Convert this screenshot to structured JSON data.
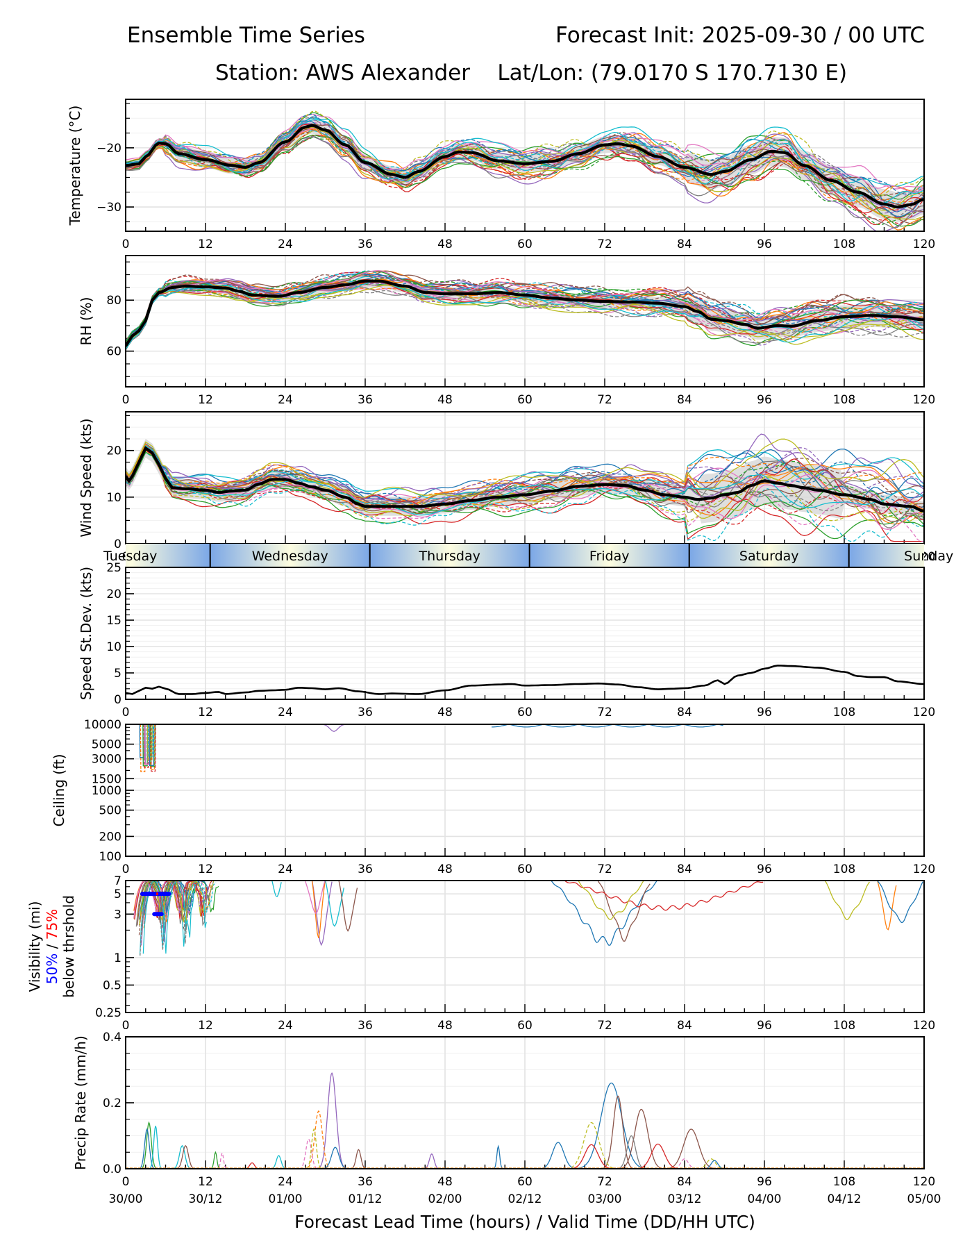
{
  "header": {
    "title": "Ensemble Time Series",
    "init": "Forecast Init: 2025-09-30 / 00 UTC",
    "station": "Station: AWS Alexander    Lat/Lon: (79.0170 S 170.7130 E)"
  },
  "chart_data": {
    "type": "line",
    "title": "Ensemble Time Series",
    "x": {
      "label": "Forecast Lead Time (hours) / Valid Time (DD/HH UTC)",
      "range": [
        0,
        120
      ],
      "ticks": [
        0,
        12,
        24,
        36,
        48,
        60,
        72,
        84,
        96,
        108,
        120
      ],
      "valid_time_labels": [
        "30/00",
        "30/12",
        "01/00",
        "01/12",
        "02/00",
        "02/12",
        "03/00",
        "03/12",
        "04/00",
        "04/12",
        "05/00"
      ]
    },
    "day_bar": {
      "days": [
        {
          "label": "Tuesday",
          "start": 0,
          "end": 12.7
        },
        {
          "label": "Wednesday",
          "start": 12.7,
          "end": 36.7
        },
        {
          "label": "Thursday",
          "start": 36.7,
          "end": 60.7
        },
        {
          "label": "Friday",
          "start": 60.7,
          "end": 84.7
        },
        {
          "label": "Saturday",
          "start": 84.7,
          "end": 108.7
        },
        {
          "label": "Sunday",
          "start": 108.7,
          "end": 132.7
        }
      ],
      "night_color": "#7ba7e6",
      "day_color": "#fdfde0"
    },
    "panels": [
      {
        "name": "temperature",
        "ylabel": "Temperature (°C)",
        "scale": "linear",
        "ylim": [
          -34.1,
          -11.8
        ],
        "yticks": [
          -20,
          -30
        ],
        "ytick_labels": [
          "−20",
          "−30"
        ],
        "mean": [
          [
            0,
            -23
          ],
          [
            2,
            -22.7
          ],
          [
            3,
            -21.5
          ],
          [
            5,
            -19.2
          ],
          [
            6,
            -19.3
          ],
          [
            8,
            -21
          ],
          [
            12,
            -22
          ],
          [
            16,
            -23
          ],
          [
            18,
            -23.3
          ],
          [
            20,
            -22.5
          ],
          [
            24,
            -19
          ],
          [
            27,
            -16.5
          ],
          [
            28,
            -16.2
          ],
          [
            30,
            -17
          ],
          [
            33,
            -19.5
          ],
          [
            36,
            -22.5
          ],
          [
            40,
            -24.5
          ],
          [
            42,
            -25
          ],
          [
            44,
            -24
          ],
          [
            48,
            -21.5
          ],
          [
            50,
            -20.7
          ],
          [
            52,
            -20.8
          ],
          [
            56,
            -22.2
          ],
          [
            60,
            -22.7
          ],
          [
            64,
            -22.3
          ],
          [
            68,
            -21
          ],
          [
            72,
            -19.5
          ],
          [
            74,
            -19.3
          ],
          [
            76,
            -19.7
          ],
          [
            80,
            -21.5
          ],
          [
            84,
            -23.3
          ],
          [
            88,
            -24.5
          ],
          [
            90,
            -24
          ],
          [
            94,
            -22
          ],
          [
            97,
            -20.6
          ],
          [
            99,
            -20.8
          ],
          [
            102,
            -23
          ],
          [
            106,
            -25.5
          ],
          [
            110,
            -27.5
          ],
          [
            114,
            -29.5
          ],
          [
            116,
            -30
          ],
          [
            118,
            -29.6
          ],
          [
            120,
            -28.7
          ]
        ],
        "spread_halfwidth": 1.4,
        "member_spread": 2.3
      },
      {
        "name": "rh",
        "ylabel": "RH (%)",
        "scale": "linear",
        "ylim": [
          46,
          97.5
        ],
        "yticks": [
          80,
          60
        ],
        "ytick_labels": [
          "80",
          "60"
        ],
        "mean": [
          [
            0,
            62
          ],
          [
            1,
            66
          ],
          [
            2,
            68
          ],
          [
            3,
            72
          ],
          [
            4,
            80
          ],
          [
            5,
            83
          ],
          [
            7,
            85
          ],
          [
            9,
            85.5
          ],
          [
            12,
            85.2
          ],
          [
            15,
            84.8
          ],
          [
            17,
            83.5
          ],
          [
            19,
            82
          ],
          [
            23,
            81.5
          ],
          [
            26,
            83
          ],
          [
            30,
            85
          ],
          [
            33,
            86
          ],
          [
            36,
            87.5
          ],
          [
            38,
            87.5
          ],
          [
            42,
            85.5
          ],
          [
            45,
            83
          ],
          [
            48,
            82.5
          ],
          [
            52,
            82.5
          ],
          [
            56,
            83
          ],
          [
            60,
            82
          ],
          [
            64,
            80.8
          ],
          [
            68,
            80
          ],
          [
            72,
            79.5
          ],
          [
            76,
            79.3
          ],
          [
            80,
            78.8
          ],
          [
            84,
            77.5
          ],
          [
            86,
            75.5
          ],
          [
            88,
            72.5
          ],
          [
            90,
            72
          ],
          [
            93,
            70.5
          ],
          [
            95,
            69
          ],
          [
            98,
            70
          ],
          [
            100,
            69.8
          ],
          [
            104,
            72
          ],
          [
            108,
            73.5
          ],
          [
            112,
            74
          ],
          [
            116,
            73.5
          ],
          [
            120,
            72.3
          ]
        ],
        "spread_halfwidth": 2.5,
        "member_spread": 3.5
      },
      {
        "name": "wind_speed",
        "ylabel": "Wind Speed (kts)",
        "scale": "linear",
        "ylim": [
          0,
          28.3
        ],
        "yticks": [
          0,
          10,
          20
        ],
        "ytick_labels": [
          "0",
          "10",
          "20"
        ],
        "mean": [
          [
            0,
            14.5
          ],
          [
            0.5,
            13.5
          ],
          [
            1,
            14.5
          ],
          [
            2,
            17.5
          ],
          [
            3,
            20.5
          ],
          [
            4,
            19.5
          ],
          [
            5,
            17
          ],
          [
            6,
            14
          ],
          [
            7,
            12
          ],
          [
            9,
            11.8
          ],
          [
            12,
            11.5
          ],
          [
            14,
            11
          ],
          [
            16,
            11.3
          ],
          [
            18,
            11.5
          ],
          [
            20,
            12.8
          ],
          [
            22,
            13.8
          ],
          [
            24,
            13.8
          ],
          [
            26,
            13
          ],
          [
            28,
            12.2
          ],
          [
            30,
            11.5
          ],
          [
            33,
            10
          ],
          [
            35,
            8.5
          ],
          [
            36,
            8
          ],
          [
            40,
            8
          ],
          [
            44,
            8
          ],
          [
            48,
            8.5
          ],
          [
            52,
            9.3
          ],
          [
            56,
            10
          ],
          [
            60,
            10.5
          ],
          [
            64,
            11.3
          ],
          [
            68,
            12.3
          ],
          [
            72,
            12.7
          ],
          [
            75,
            12.5
          ],
          [
            78,
            11.5
          ],
          [
            81,
            10.5
          ],
          [
            84,
            10
          ],
          [
            86,
            9.5
          ],
          [
            88,
            9.8
          ],
          [
            90,
            10.5
          ],
          [
            92,
            11
          ],
          [
            94,
            12.5
          ],
          [
            96,
            13.5
          ],
          [
            98,
            13
          ],
          [
            100,
            12.5
          ],
          [
            102,
            12
          ],
          [
            104,
            11.5
          ],
          [
            108,
            10.5
          ],
          [
            112,
            9.5
          ],
          [
            114,
            8.5
          ],
          [
            118,
            8
          ],
          [
            120,
            7
          ]
        ],
        "spread_halfwidth": 2,
        "member_spread": 2.8
      },
      {
        "name": "speed_stddev",
        "ylabel": "Speed St.Dev. (kts)",
        "scale": "linear",
        "ylim": [
          0,
          25
        ],
        "yticks": [
          0,
          5,
          10,
          15,
          20,
          25
        ],
        "ytick_labels": [
          "0",
          "5",
          "10",
          "15",
          "20",
          "25"
        ],
        "mean": [
          [
            0,
            1.2
          ],
          [
            1,
            1
          ],
          [
            2,
            1.6
          ],
          [
            3,
            2.2
          ],
          [
            4,
            2
          ],
          [
            5,
            2.4
          ],
          [
            6,
            2
          ],
          [
            8,
            1
          ],
          [
            10,
            1
          ],
          [
            12,
            1.2
          ],
          [
            14,
            1.4
          ],
          [
            15,
            1
          ],
          [
            18,
            1.3
          ],
          [
            20,
            1.6
          ],
          [
            22,
            1.7
          ],
          [
            24,
            1.8
          ],
          [
            26,
            2.2
          ],
          [
            28,
            2.1
          ],
          [
            30,
            1.9
          ],
          [
            32,
            2.1
          ],
          [
            35,
            1.5
          ],
          [
            38,
            1
          ],
          [
            40,
            1.1
          ],
          [
            44,
            1
          ],
          [
            48,
            1.7
          ],
          [
            52,
            2.6
          ],
          [
            56,
            2.8
          ],
          [
            58,
            2.9
          ],
          [
            60,
            2.6
          ],
          [
            64,
            2.7
          ],
          [
            68,
            2.9
          ],
          [
            71,
            3
          ],
          [
            74,
            2.8
          ],
          [
            77,
            2.3
          ],
          [
            80,
            1.9
          ],
          [
            82,
            2
          ],
          [
            84,
            2.1
          ],
          [
            87,
            2.6
          ],
          [
            89,
            3.6
          ],
          [
            90,
            2.9
          ],
          [
            92,
            4.5
          ],
          [
            94,
            5
          ],
          [
            96,
            5.8
          ],
          [
            98,
            6.4
          ],
          [
            100,
            6.3
          ],
          [
            104,
            6
          ],
          [
            108,
            5.2
          ],
          [
            110,
            4.4
          ],
          [
            112,
            4.2
          ],
          [
            114,
            4.2
          ],
          [
            116,
            3.4
          ],
          [
            120,
            2.9
          ]
        ]
      },
      {
        "name": "ceiling",
        "ylabel": "Ceiling (ft)",
        "scale": "log",
        "ylim": [
          100,
          10000
        ],
        "yticks": [
          100,
          200,
          500,
          1000,
          1500,
          3000,
          5000,
          10000
        ],
        "ytick_labels": [
          "100",
          "200",
          "500",
          "1000",
          "1500",
          "3000",
          "5000",
          "10000"
        ]
      },
      {
        "name": "visibility",
        "ylabel": "Visibility (mi)",
        "ylabel_line2": [
          "50%",
          " / ",
          "75%"
        ],
        "ylabel_line3": "below thrshold",
        "legend_colors": {
          "p50": "#0000ff",
          "p75": "#ff0000"
        },
        "scale": "log",
        "ylim": [
          0.25,
          7
        ],
        "yticks": [
          0.25,
          0.5,
          1,
          3,
          5,
          7
        ],
        "ytick_labels": [
          "0.25",
          "0.5",
          "1",
          "3",
          "5",
          "7"
        ],
        "threshold_bars_50pct": [
          {
            "x0": 2.5,
            "x1": 6.5,
            "y": 5
          },
          {
            "x0": 4.3,
            "x1": 5.4,
            "y": 3
          }
        ],
        "threshold_bars_75pct": [
          {
            "x0": 4.6,
            "x1": 4.9,
            "y": 5
          }
        ]
      },
      {
        "name": "precip_rate",
        "ylabel": "Precip Rate (mm/h)",
        "scale": "linear",
        "ylim": [
          0,
          0.4
        ],
        "yticks": [
          0.0,
          0.2,
          0.4
        ],
        "ytick_labels": [
          "0.0",
          "0.2",
          "0.4"
        ],
        "peaks": [
          {
            "member": 4,
            "center": 31,
            "height": 0.29,
            "width": 0.9
          },
          {
            "member": 1,
            "center": 29,
            "height": 0.175,
            "width": 0.8
          },
          {
            "member": 0,
            "center": 73,
            "height": 0.26,
            "width": 2.2
          },
          {
            "member": 5,
            "center": 74,
            "height": 0.22,
            "width": 1.0
          },
          {
            "member": 5,
            "center": 77.5,
            "height": 0.18,
            "width": 1.4
          },
          {
            "member": 5,
            "center": 85,
            "height": 0.12,
            "width": 1.6
          },
          {
            "member": 8,
            "center": 70,
            "height": 0.14,
            "width": 1.6
          },
          {
            "member": 7,
            "center": 76,
            "height": 0.1,
            "width": 0.9
          },
          {
            "member": 3,
            "center": 70,
            "height": 0.073,
            "width": 1.4
          },
          {
            "member": 3,
            "center": 80,
            "height": 0.075,
            "width": 1.4
          },
          {
            "member": 0,
            "center": 65,
            "height": 0.08,
            "width": 1.2
          },
          {
            "member": 0,
            "center": 56,
            "height": 0.068,
            "width": 0.3
          },
          {
            "member": 2,
            "center": 3.5,
            "height": 0.14,
            "width": 0.5
          },
          {
            "member": 0,
            "center": 3.2,
            "height": 0.12,
            "width": 0.5
          },
          {
            "member": 9,
            "center": 4.5,
            "height": 0.13,
            "width": 0.4
          },
          {
            "member": 9,
            "center": 8.5,
            "height": 0.07,
            "width": 0.6
          },
          {
            "member": 5,
            "center": 9,
            "height": 0.07,
            "width": 0.6
          },
          {
            "member": 6,
            "center": 27.5,
            "height": 0.09,
            "width": 0.6
          },
          {
            "member": 8,
            "center": 28.3,
            "height": 0.12,
            "width": 0.5
          },
          {
            "member": 0,
            "center": 31.5,
            "height": 0.065,
            "width": 0.8
          },
          {
            "member": 5,
            "center": 35,
            "height": 0.058,
            "width": 0.5
          },
          {
            "member": 4,
            "center": 46,
            "height": 0.045,
            "width": 0.5
          },
          {
            "member": 9,
            "center": 23,
            "height": 0.04,
            "width": 0.5
          },
          {
            "member": 3,
            "center": 19,
            "height": 0.018,
            "width": 0.5
          },
          {
            "member": 6,
            "center": 14.5,
            "height": 0.048,
            "width": 0.3
          },
          {
            "member": 2,
            "center": 13.5,
            "height": 0.05,
            "width": 0.3
          },
          {
            "member": 6,
            "center": 84,
            "height": 0.03,
            "width": 0.8
          },
          {
            "member": 8,
            "center": 88,
            "height": 0.03,
            "width": 0.9
          },
          {
            "member": 0,
            "center": 88.5,
            "height": 0.025,
            "width": 0.7
          }
        ]
      }
    ],
    "member_colors": [
      "#1f77b4",
      "#ff7f0e",
      "#2ca02c",
      "#d62728",
      "#9467bd",
      "#8c564b",
      "#e377c2",
      "#7f7f7f",
      "#bcbd22",
      "#17becf"
    ],
    "member_count": 30,
    "mean_color": "#000000",
    "spread_color": "#d9d9d9"
  }
}
